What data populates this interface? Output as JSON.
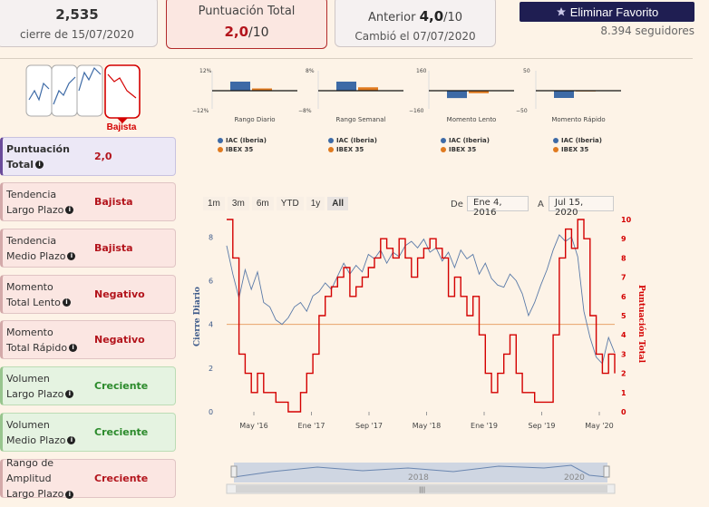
{
  "price_card": {
    "value": "2,535",
    "date_label": "cierre de 15/07/2020"
  },
  "score_card": {
    "label": "Puntuación Total",
    "value": "2,0",
    "suffix": "/10"
  },
  "prev_card": {
    "label": "Anterior",
    "value": "4,0",
    "suffix": "/10",
    "changed": "Cambió el 07/07/2020"
  },
  "fav_button": {
    "label": "Eliminar Favorito",
    "icon": "star-icon"
  },
  "followers": "8.394 seguidores",
  "trend_badge": "Bajista",
  "rows": [
    {
      "l1": "Puntuación",
      "l2": "Total",
      "value": "2,0",
      "style": "purple"
    },
    {
      "l1": "Tendencia",
      "l2": "Largo Plazo",
      "value": "Bajista",
      "style": "red"
    },
    {
      "l1": "Tendencia",
      "l2": "Medio Plazo",
      "value": "Bajista",
      "style": "red"
    },
    {
      "l1": "Momento",
      "l2": "Total Lento",
      "value": "Negativo",
      "style": "red"
    },
    {
      "l1": "Momento",
      "l2": "Total Rápido",
      "value": "Negativo",
      "style": "red"
    },
    {
      "l1": "Volumen",
      "l2": "Largo Plazo",
      "value": "Creciente",
      "style": "green"
    },
    {
      "l1": "Volumen",
      "l2": "Medio Plazo",
      "value": "Creciente",
      "style": "green"
    },
    {
      "l1": "Rango de Amplitud",
      "l2": "Largo Plazo",
      "value": "Creciente",
      "style": "red"
    }
  ],
  "colors": {
    "iac": "#3d6aa6",
    "ibex": "#e07a1f",
    "score_line": "#d40000",
    "price_line": "#5a7aa8",
    "threshold": "#e8a36a"
  },
  "chart_data": [
    {
      "type": "bar",
      "title": "Rango Diario",
      "ymax_label": "12%",
      "ymin_label": "−12%",
      "ylim": [
        -12,
        12
      ],
      "series": [
        {
          "name": "IAC (Iberia)",
          "values": [
            6
          ]
        },
        {
          "name": "IBEX 35",
          "values": [
            1.5
          ]
        }
      ]
    },
    {
      "type": "bar",
      "title": "Rango Semanal",
      "ymax_label": "8%",
      "ymin_label": "−8%",
      "ylim": [
        -8,
        8
      ],
      "series": [
        {
          "name": "IAC (Iberia)",
          "values": [
            4
          ]
        },
        {
          "name": "IBEX 35",
          "values": [
            1.5
          ]
        }
      ]
    },
    {
      "type": "bar",
      "title": "Momento Lento",
      "ymax_label": "160",
      "ymin_label": "−160",
      "ylim": [
        -160,
        160
      ],
      "series": [
        {
          "name": "IAC (Iberia)",
          "values": [
            -65
          ]
        },
        {
          "name": "IBEX 35",
          "values": [
            -22
          ]
        }
      ]
    },
    {
      "type": "bar",
      "title": "Momento Rápido",
      "ymax_label": "50",
      "ymin_label": "−50",
      "ylim": [
        -50,
        50
      ],
      "series": [
        {
          "name": "IAC (Iberia)",
          "values": [
            -20
          ]
        },
        {
          "name": "IBEX 35",
          "values": [
            -0.5
          ]
        }
      ]
    },
    {
      "type": "line",
      "x_ticks": [
        "May '16",
        "Ene '17",
        "Sep '17",
        "May '18",
        "Ene '19",
        "Sep '19",
        "May '20"
      ],
      "ylabel": "Cierre Diario",
      "y2label": "Puntuación Total",
      "yticks": [
        0,
        2,
        4,
        6,
        8
      ],
      "y2ticks": [
        0,
        1,
        2,
        3,
        4,
        5,
        6,
        7,
        8,
        9,
        10
      ],
      "threshold": 4,
      "price": [
        7.6,
        6.3,
        5.2,
        6.5,
        5.6,
        6.4,
        5.0,
        4.8,
        4.2,
        4.0,
        4.3,
        4.8,
        5.0,
        4.6,
        5.3,
        5.5,
        5.9,
        5.6,
        6.2,
        6.8,
        6.3,
        6.7,
        6.4,
        7.2,
        7.0,
        7.4,
        6.8,
        7.3,
        7.1,
        7.6,
        7.8,
        7.5,
        7.9,
        7.3,
        7.5,
        6.9,
        7.3,
        6.6,
        7.4,
        7.0,
        7.2,
        6.3,
        6.8,
        6.1,
        5.8,
        5.7,
        6.3,
        6.0,
        5.4,
        4.4,
        5.0,
        5.8,
        6.5,
        7.4,
        8.1,
        7.8,
        8.0,
        7.1,
        4.6,
        3.4,
        2.5,
        2.2,
        3.4,
        2.7
      ],
      "score": [
        10,
        8,
        3,
        2,
        1,
        2,
        1,
        1,
        0.5,
        0.5,
        0,
        0,
        1,
        2,
        3,
        5,
        6,
        6.5,
        7,
        7.5,
        6,
        6.5,
        7,
        7.5,
        8,
        9,
        8.5,
        8,
        9,
        8,
        7,
        8,
        8.5,
        9,
        8.5,
        8,
        6,
        7,
        6,
        5,
        6,
        4,
        2,
        1,
        2,
        3,
        4,
        2,
        1,
        1,
        0.5,
        0.5,
        0.5,
        4,
        8,
        9.5,
        8.5,
        10,
        9,
        5,
        3,
        2,
        3,
        2
      ]
    }
  ]
}
